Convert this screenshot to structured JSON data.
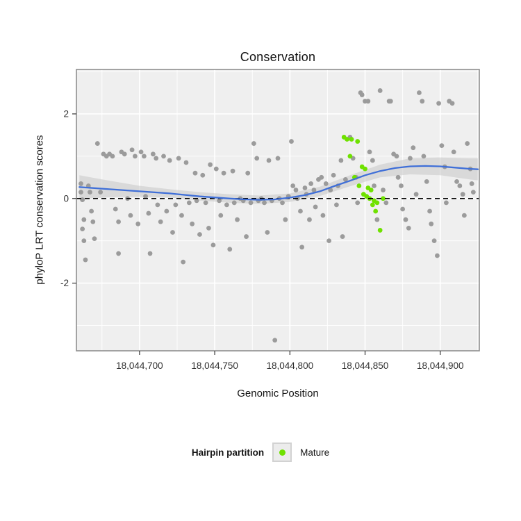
{
  "chart_data": {
    "type": "scatter",
    "title": "Conservation",
    "xlabel": "Genomic Position",
    "ylabel": "phyloP LRT conservation scores",
    "x_domain": [
      18044658,
      18044926
    ],
    "y_domain": [
      -3.6,
      3.05
    ],
    "x_ticks": [
      {
        "value": 18044700,
        "label": "18,044,700"
      },
      {
        "value": 18044750,
        "label": "18,044,750"
      },
      {
        "value": 18044800,
        "label": "18,044,800"
      },
      {
        "value": 18044850,
        "label": "18,044,850"
      },
      {
        "value": 18044900,
        "label": "18,044,900"
      }
    ],
    "y_ticks": [
      {
        "value": -2,
        "label": "-2"
      },
      {
        "value": 0,
        "label": "0"
      },
      {
        "value": 2,
        "label": "2"
      }
    ],
    "x_minor_gridlines": [
      18044675,
      18044725,
      18044775,
      18044825,
      18044875,
      18044925
    ],
    "y_minor_gridlines": [
      -3,
      -1,
      1,
      3
    ],
    "reference_line_y": 0,
    "colors": {
      "panel_bg": "#efefef",
      "panel_border": "#8f8f8f",
      "grid": "#ffffff",
      "point_gray": "#9b9b9b",
      "point_mature": "#6fe100",
      "smooth_line": "#3f6fd8",
      "smooth_band": "#c6c6c6",
      "reference_line": "#000000",
      "tick_text": "#303030"
    },
    "series": [
      {
        "name": "",
        "color": "#9b9b9b",
        "points": [
          [
            18044661,
            0.35
          ],
          [
            18044661,
            0.15
          ],
          [
            18044662,
            -0.03
          ],
          [
            18044662,
            -0.72
          ],
          [
            18044663,
            -0.5
          ],
          [
            18044663,
            -1.0
          ],
          [
            18044664,
            -1.45
          ],
          [
            18044666,
            0.3
          ],
          [
            18044667,
            0.15
          ],
          [
            18044668,
            -0.3
          ],
          [
            18044669,
            -0.55
          ],
          [
            18044670,
            -0.95
          ],
          [
            18044672,
            1.3
          ],
          [
            18044674,
            0.15
          ],
          [
            18044676,
            1.05
          ],
          [
            18044678,
            1.0
          ],
          [
            18044680,
            1.05
          ],
          [
            18044682,
            1.0
          ],
          [
            18044684,
            -0.25
          ],
          [
            18044686,
            -0.55
          ],
          [
            18044686,
            -1.3
          ],
          [
            18044688,
            1.1
          ],
          [
            18044690,
            1.05
          ],
          [
            18044692,
            0.0
          ],
          [
            18044694,
            -0.4
          ],
          [
            18044695,
            1.15
          ],
          [
            18044697,
            1.0
          ],
          [
            18044699,
            -0.6
          ],
          [
            18044701,
            1.1
          ],
          [
            18044703,
            1.0
          ],
          [
            18044704,
            0.05
          ],
          [
            18044706,
            -0.35
          ],
          [
            18044707,
            -1.3
          ],
          [
            18044709,
            1.05
          ],
          [
            18044711,
            0.95
          ],
          [
            18044712,
            -0.15
          ],
          [
            18044714,
            -0.55
          ],
          [
            18044716,
            1.0
          ],
          [
            18044718,
            -0.3
          ],
          [
            18044720,
            0.9
          ],
          [
            18044722,
            -0.8
          ],
          [
            18044724,
            -0.15
          ],
          [
            18044726,
            0.95
          ],
          [
            18044728,
            -0.4
          ],
          [
            18044729,
            -1.5
          ],
          [
            18044731,
            0.85
          ],
          [
            18044733,
            -0.1
          ],
          [
            18044735,
            -0.6
          ],
          [
            18044737,
            0.6
          ],
          [
            18044738,
            -0.05
          ],
          [
            18044740,
            -0.85
          ],
          [
            18044742,
            0.55
          ],
          [
            18044744,
            -0.1
          ],
          [
            18044746,
            -0.7
          ],
          [
            18044747,
            0.8
          ],
          [
            18044749,
            -1.1
          ],
          [
            18044751,
            0.7
          ],
          [
            18044753,
            -0.05
          ],
          [
            18044754,
            -0.4
          ],
          [
            18044756,
            0.6
          ],
          [
            18044758,
            -0.15
          ],
          [
            18044760,
            -1.2
          ],
          [
            18044762,
            0.65
          ],
          [
            18044763,
            -0.1
          ],
          [
            18044765,
            -0.5
          ],
          [
            18044767,
            0.0
          ],
          [
            18044769,
            -0.05
          ],
          [
            18044771,
            -0.9
          ],
          [
            18044772,
            0.6
          ],
          [
            18044774,
            -0.1
          ],
          [
            18044776,
            1.3
          ],
          [
            18044778,
            0.95
          ],
          [
            18044779,
            -0.05
          ],
          [
            18044781,
            0.0
          ],
          [
            18044783,
            -0.1
          ],
          [
            18044785,
            -0.8
          ],
          [
            18044786,
            0.9
          ],
          [
            18044788,
            -0.05
          ],
          [
            18044790,
            -3.35
          ],
          [
            18044792,
            0.95
          ],
          [
            18044793,
            0.0
          ],
          [
            18044795,
            -0.1
          ],
          [
            18044797,
            -0.5
          ],
          [
            18044799,
            0.05
          ],
          [
            18044801,
            1.35
          ],
          [
            18044802,
            0.3
          ],
          [
            18044804,
            0.2
          ],
          [
            18044805,
            0.0
          ],
          [
            18044807,
            -0.3
          ],
          [
            18044808,
            -1.15
          ],
          [
            18044810,
            0.25
          ],
          [
            18044811,
            0.1
          ],
          [
            18044813,
            -0.5
          ],
          [
            18044814,
            0.35
          ],
          [
            18044816,
            0.2
          ],
          [
            18044817,
            -0.2
          ],
          [
            18044819,
            0.45
          ],
          [
            18044821,
            0.5
          ],
          [
            18044822,
            -0.4
          ],
          [
            18044824,
            0.35
          ],
          [
            18044826,
            -1.0
          ],
          [
            18044827,
            0.2
          ],
          [
            18044829,
            0.55
          ],
          [
            18044831,
            -0.15
          ],
          [
            18044832,
            0.3
          ],
          [
            18044834,
            0.9
          ],
          [
            18044835,
            -0.9
          ],
          [
            18044837,
            0.45
          ],
          [
            18044840,
            1.45
          ],
          [
            18044842,
            0.95
          ],
          [
            18044844,
            0.5
          ],
          [
            18044845,
            -0.1
          ],
          [
            18044847,
            2.5
          ],
          [
            18044848,
            2.45
          ],
          [
            18044850,
            2.3
          ],
          [
            18044852,
            2.3
          ],
          [
            18044853,
            1.1
          ],
          [
            18044855,
            0.9
          ],
          [
            18044856,
            0.3
          ],
          [
            18044858,
            -0.5
          ],
          [
            18044860,
            2.55
          ],
          [
            18044862,
            0.2
          ],
          [
            18044864,
            -0.1
          ],
          [
            18044866,
            2.3
          ],
          [
            18044867,
            2.3
          ],
          [
            18044869,
            1.05
          ],
          [
            18044871,
            1.0
          ],
          [
            18044872,
            0.5
          ],
          [
            18044874,
            0.3
          ],
          [
            18044875,
            -0.25
          ],
          [
            18044877,
            -0.5
          ],
          [
            18044879,
            -0.7
          ],
          [
            18044880,
            0.95
          ],
          [
            18044882,
            1.2
          ],
          [
            18044884,
            0.1
          ],
          [
            18044886,
            2.5
          ],
          [
            18044888,
            2.3
          ],
          [
            18044889,
            1.0
          ],
          [
            18044891,
            0.4
          ],
          [
            18044893,
            -0.3
          ],
          [
            18044894,
            -0.6
          ],
          [
            18044896,
            -1.0
          ],
          [
            18044898,
            -1.35
          ],
          [
            18044899,
            2.25
          ],
          [
            18044901,
            1.25
          ],
          [
            18044903,
            0.75
          ],
          [
            18044904,
            -0.1
          ],
          [
            18044906,
            2.3
          ],
          [
            18044908,
            2.25
          ],
          [
            18044909,
            1.1
          ],
          [
            18044911,
            0.4
          ],
          [
            18044913,
            0.3
          ],
          [
            18044915,
            0.1
          ],
          [
            18044916,
            -0.4
          ],
          [
            18044918,
            1.3
          ],
          [
            18044920,
            0.7
          ],
          [
            18044921,
            0.35
          ],
          [
            18044922,
            0.15
          ]
        ]
      },
      {
        "name": "Mature",
        "color": "#6fe100",
        "points": [
          [
            18044836,
            1.45
          ],
          [
            18044838,
            1.4
          ],
          [
            18044841,
            1.4
          ],
          [
            18044845,
            1.35
          ],
          [
            18044840,
            1.0
          ],
          [
            18044848,
            0.75
          ],
          [
            18044850,
            0.7
          ],
          [
            18044843,
            0.5
          ],
          [
            18044846,
            0.3
          ],
          [
            18044852,
            0.25
          ],
          [
            18044854,
            0.2
          ],
          [
            18044849,
            0.1
          ],
          [
            18044851,
            0.05
          ],
          [
            18044853,
            0.0
          ],
          [
            18044856,
            -0.05
          ],
          [
            18044858,
            -0.1
          ],
          [
            18044855,
            -0.15
          ],
          [
            18044857,
            -0.3
          ],
          [
            18044860,
            -0.75
          ],
          [
            18044862,
            0.0
          ]
        ]
      }
    ],
    "smooth": {
      "color": "#3f6fd8",
      "band_color": "#c6c6c6",
      "line": [
        [
          18044660,
          0.27
        ],
        [
          18044680,
          0.22
        ],
        [
          18044700,
          0.17
        ],
        [
          18044720,
          0.12
        ],
        [
          18044740,
          0.05
        ],
        [
          18044760,
          0.0
        ],
        [
          18044770,
          -0.02
        ],
        [
          18044780,
          -0.03
        ],
        [
          18044790,
          -0.02
        ],
        [
          18044800,
          0.02
        ],
        [
          18044810,
          0.08
        ],
        [
          18044820,
          0.17
        ],
        [
          18044830,
          0.3
        ],
        [
          18044840,
          0.42
        ],
        [
          18044850,
          0.55
        ],
        [
          18044860,
          0.65
        ],
        [
          18044870,
          0.72
        ],
        [
          18044880,
          0.76
        ],
        [
          18044890,
          0.77
        ],
        [
          18044900,
          0.76
        ],
        [
          18044910,
          0.73
        ],
        [
          18044920,
          0.7
        ],
        [
          18044925,
          0.69
        ]
      ],
      "band": [
        [
          18044660,
          0.55,
          -0.02
        ],
        [
          18044680,
          0.42,
          0.03
        ],
        [
          18044700,
          0.3,
          0.04
        ],
        [
          18044720,
          0.22,
          0.02
        ],
        [
          18044740,
          0.15,
          -0.05
        ],
        [
          18044760,
          0.1,
          -0.1
        ],
        [
          18044780,
          0.07,
          -0.13
        ],
        [
          18044800,
          0.12,
          -0.08
        ],
        [
          18044820,
          0.28,
          0.06
        ],
        [
          18044840,
          0.55,
          0.29
        ],
        [
          18044860,
          0.8,
          0.5
        ],
        [
          18044880,
          0.95,
          0.57
        ],
        [
          18044900,
          0.97,
          0.55
        ],
        [
          18044920,
          0.95,
          0.45
        ],
        [
          18044925,
          0.95,
          0.43
        ]
      ]
    },
    "legend": {
      "title": "Hairpin partition",
      "items": [
        {
          "label": "Mature",
          "color": "#6fe100"
        }
      ]
    }
  }
}
